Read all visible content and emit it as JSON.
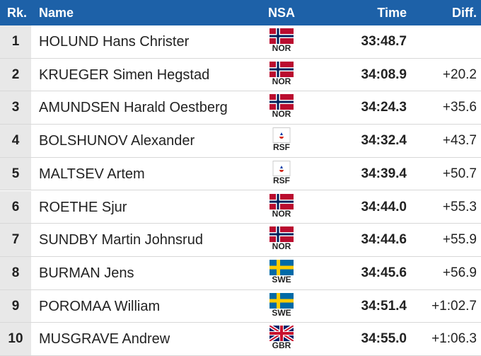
{
  "table": {
    "columns": [
      "Rk.",
      "Name",
      "NSA",
      "Time",
      "Diff."
    ],
    "rows": [
      {
        "rank": "1",
        "name": "HOLUND Hans Christer",
        "nsa": "NOR",
        "time": "33:48.7"
      },
      {
        "rank": "2",
        "name": "KRUEGER Simen Hegstad",
        "nsa": "NOR",
        "time": "34:08.9",
        "diff": "+20.2"
      },
      {
        "rank": "3",
        "name": "AMUNDSEN Harald Oestberg",
        "nsa": "NOR",
        "time": "34:24.3",
        "diff": "+35.6"
      },
      {
        "rank": "4",
        "name": "BOLSHUNOV Alexander",
        "nsa": "RSF",
        "time": "34:32.4",
        "diff": "+43.7"
      },
      {
        "rank": "5",
        "name": "MALTSEV Artem",
        "nsa": "RSF",
        "time": "34:39.4",
        "diff": "+50.7"
      },
      {
        "rank": "6",
        "name": "ROETHE Sjur",
        "nsa": "NOR",
        "time": "34:44.0",
        "diff": "+55.3"
      },
      {
        "rank": "7",
        "name": "SUNDBY Martin Johnsrud",
        "nsa": "NOR",
        "time": "34:44.6",
        "diff": "+55.9"
      },
      {
        "rank": "8",
        "name": "BURMAN Jens",
        "nsa": "SWE",
        "time": "34:45.6",
        "diff": "+56.9"
      },
      {
        "rank": "9",
        "name": "POROMAA William",
        "nsa": "SWE",
        "time": "34:51.4",
        "diff": "+1:02.7"
      },
      {
        "rank": "10",
        "name": "MUSGRAVE Andrew",
        "nsa": "GBR",
        "time": "34:55.0",
        "diff": "+1:06.3"
      }
    ]
  }
}
